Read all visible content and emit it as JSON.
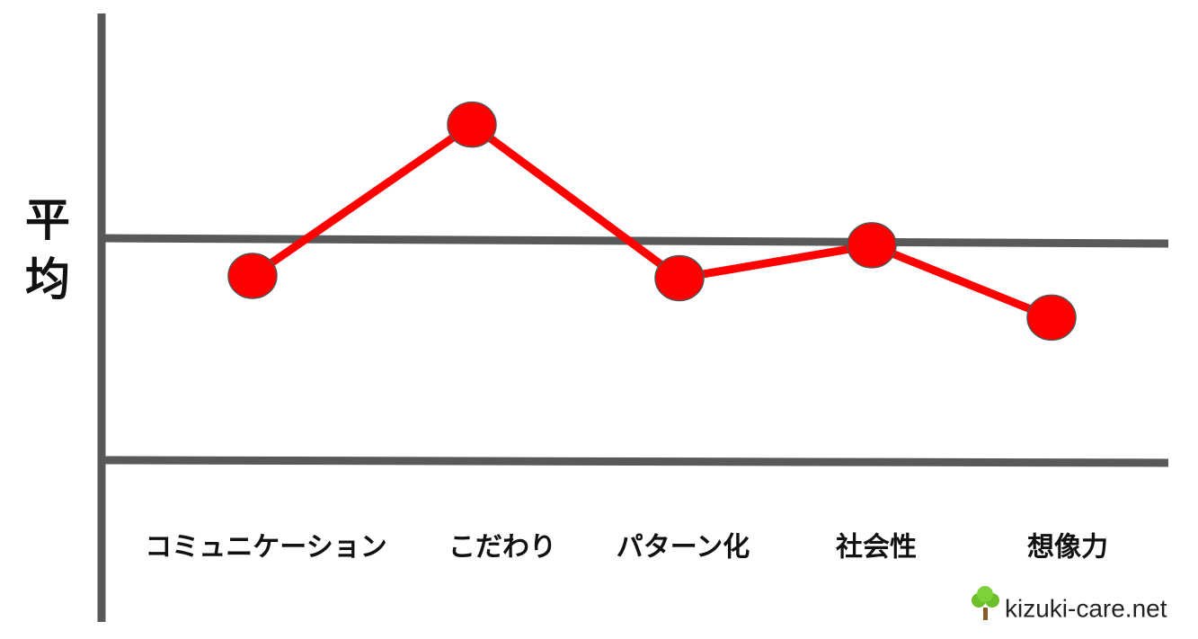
{
  "chart_data": {
    "type": "line",
    "categories": [
      "コミュニケーション",
      "こだわり",
      "パターン化",
      "社会性",
      "想像力"
    ],
    "values": [
      84,
      153,
      83,
      98,
      65
    ],
    "color": "#ff0000",
    "ylim": [
      0,
      200
    ],
    "average": {
      "label": "平均",
      "value": 100
    },
    "watermark": "kizuki-care.net"
  }
}
